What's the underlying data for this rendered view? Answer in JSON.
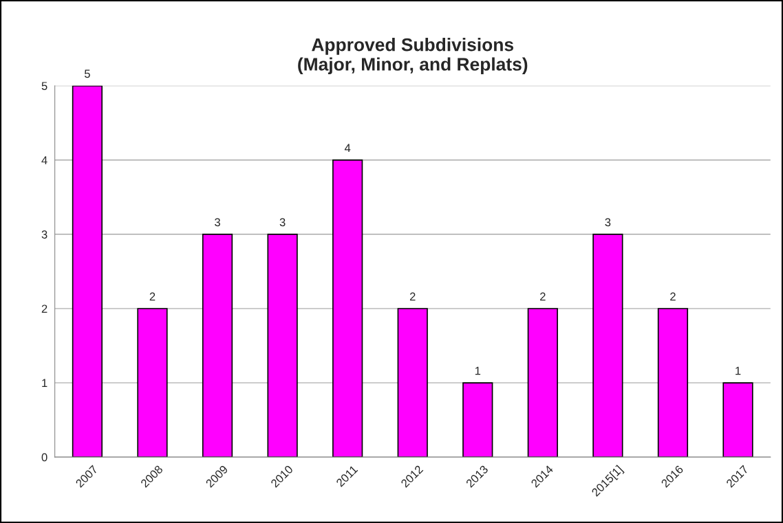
{
  "chart_data": {
    "type": "bar",
    "title": "Approved Subdivisions\n(Major, Minor, and Replats)",
    "categories": [
      "2007",
      "2008",
      "2009",
      "2010",
      "2011",
      "2012",
      "2013",
      "2014",
      "2015[1]",
      "2016",
      "2017"
    ],
    "values": [
      5,
      2,
      3,
      3,
      4,
      2,
      1,
      2,
      3,
      2,
      1
    ],
    "color": "#ff00ff",
    "ylim": [
      0,
      5
    ],
    "yticks": [
      0,
      1,
      2,
      3,
      4,
      5
    ],
    "grid": "y",
    "data_labels": true,
    "legend": false
  }
}
